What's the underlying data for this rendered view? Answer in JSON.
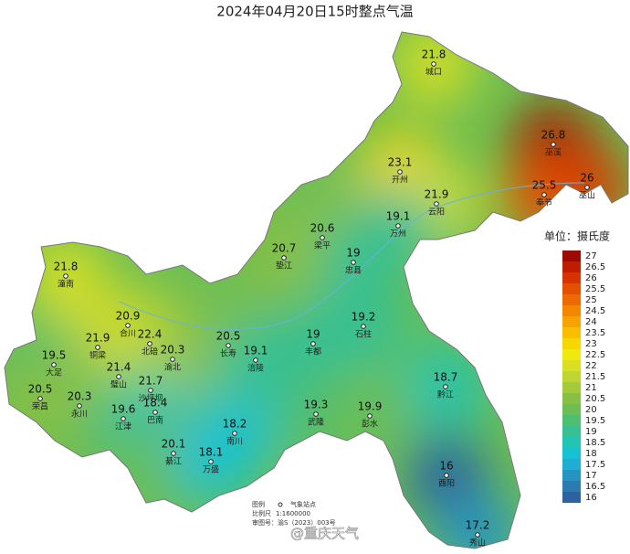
{
  "title": "2024年04月20日15时整点气温",
  "stations": [
    {
      "name": "城口",
      "value": 21.8
    },
    {
      "name": "开州",
      "value": 23.1
    },
    {
      "name": "巫溪",
      "value": 26.8
    },
    {
      "name": "巫山",
      "value": 26
    },
    {
      "name": "奉节",
      "value": 25.5
    },
    {
      "name": "云阳",
      "value": 21.9
    },
    {
      "name": "万州",
      "value": 19.1
    },
    {
      "name": "梁平",
      "value": 20.6
    },
    {
      "name": "忠县",
      "value": 19
    },
    {
      "name": "垫江",
      "value": 20.7
    },
    {
      "name": "潼南",
      "value": 21.8
    },
    {
      "name": "合川",
      "value": 20.9
    },
    {
      "name": "北碚",
      "value": 22.4
    },
    {
      "name": "渝北",
      "value": 20.3
    },
    {
      "name": "铜梁",
      "value": 21.9
    },
    {
      "name": "长寿",
      "value": 20.5
    },
    {
      "name": "涪陵",
      "value": 19.1
    },
    {
      "name": "丰都",
      "value": 19
    },
    {
      "name": "石柱",
      "value": 19.2
    },
    {
      "name": "大足",
      "value": 19.5
    },
    {
      "name": "璧山",
      "value": 21.4
    },
    {
      "name": "沙坪坝",
      "value": 21.7
    },
    {
      "name": "荣昌",
      "value": 20.5
    },
    {
      "name": "永川",
      "value": 20.3
    },
    {
      "name": "江津",
      "value": 19.6
    },
    {
      "name": "巴南",
      "value": 18.4
    },
    {
      "name": "武隆",
      "value": 19.3
    },
    {
      "name": "彭水",
      "value": 19.9
    },
    {
      "name": "黔江",
      "value": 18.7
    },
    {
      "name": "南川",
      "value": 18.2
    },
    {
      "name": "綦江",
      "value": 20.1
    },
    {
      "name": "万盛",
      "value": 18.1
    },
    {
      "name": "酉阳",
      "value": 16
    },
    {
      "name": "秀山",
      "value": 17.2
    }
  ],
  "legend": {
    "unit": "单位：摄氏度",
    "levels": [
      {
        "value": 27,
        "color": "#9e0a00"
      },
      {
        "value": 26.5,
        "color": "#c01c00"
      },
      {
        "value": 26,
        "color": "#d83200"
      },
      {
        "value": 25.5,
        "color": "#e55000"
      },
      {
        "value": 25,
        "color": "#ee6a00"
      },
      {
        "value": 24.5,
        "color": "#f48600"
      },
      {
        "value": 24,
        "color": "#f8a200"
      },
      {
        "value": 23.5,
        "color": "#fabe00"
      },
      {
        "value": 23,
        "color": "#f6d800"
      },
      {
        "value": 22.5,
        "color": "#eeea10"
      },
      {
        "value": 22,
        "color": "#d8e020"
      },
      {
        "value": 21.5,
        "color": "#c0d630"
      },
      {
        "value": 21,
        "color": "#a4ca38"
      },
      {
        "value": 20.5,
        "color": "#88c044"
      },
      {
        "value": 20,
        "color": "#6cbe54"
      },
      {
        "value": 19.5,
        "color": "#4ebe70"
      },
      {
        "value": 19,
        "color": "#36c094"
      },
      {
        "value": 18.5,
        "color": "#22c4b4"
      },
      {
        "value": 18,
        "color": "#14c2d2"
      },
      {
        "value": 17.5,
        "color": "#1eaed4"
      },
      {
        "value": 17,
        "color": "#2694c2"
      },
      {
        "value": 16.5,
        "color": "#2a7cb0"
      },
      {
        "value": 16,
        "color": "#2c62a0"
      }
    ]
  },
  "map_info": {
    "legend_label": "图例",
    "station_label": "气象站点",
    "scale_label": "比例尺",
    "scale": "1:1600000",
    "approval": "审图号：渝S（2023）003号"
  },
  "watermark": "@重庆天气"
}
